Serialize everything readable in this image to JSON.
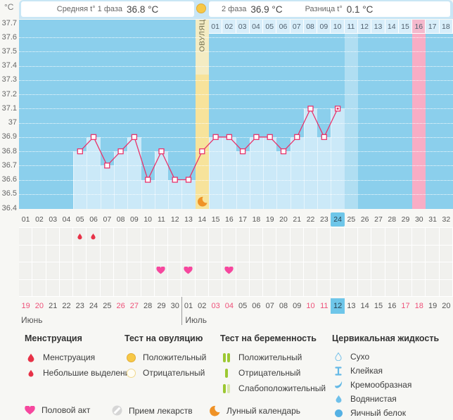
{
  "header": {
    "unit_label": "°C",
    "phase1_label": "Средняя t° 1 фаза",
    "phase1_value": "36.8 °C",
    "phase2_label": "2 фаза",
    "phase2_value": "36.9 °C",
    "diff_label": "Разница t°",
    "diff_value": "0.1 °C"
  },
  "colors": {
    "line": "#e8336b",
    "chart_bg": "#8bcfec",
    "bar_fill": "#cbe9f8",
    "ovulation_band": "#f7e39b",
    "period_band": "#f8adc5",
    "today_highlight": "#6ec6e9",
    "weekend_text": "#ee5078",
    "ovulation_yellow": "#f7c846",
    "pregnancy_green": "#9cc832",
    "fluid_blue": "#64b9e6",
    "heart_pink": "#f6479e",
    "moon_orange": "#ef9226",
    "drop_red": "#e73247"
  },
  "chart_data": {
    "type": "line",
    "ylabel": "°C",
    "ylim": [
      36.4,
      37.7
    ],
    "ytick_labels": [
      "37.7",
      "37.6",
      "37.5",
      "37.4",
      "37.3",
      "37.2",
      "37.1",
      "37",
      "36.9",
      "36.8",
      "36.7",
      "36.6",
      "36.5",
      "36.4"
    ],
    "grid": "dotted-horizontal",
    "x_days": 32,
    "points": [
      {
        "day": 5,
        "value": 36.8
      },
      {
        "day": 6,
        "value": 36.9
      },
      {
        "day": 7,
        "value": 36.7
      },
      {
        "day": 8,
        "value": 36.8
      },
      {
        "day": 9,
        "value": 36.9
      },
      {
        "day": 10,
        "value": 36.6
      },
      {
        "day": 11,
        "value": 36.8
      },
      {
        "day": 12,
        "value": 36.6
      },
      {
        "day": 13,
        "value": 36.6
      },
      {
        "day": 14,
        "value": 36.8
      },
      {
        "day": 15,
        "value": 36.9
      },
      {
        "day": 16,
        "value": 36.9
      },
      {
        "day": 17,
        "value": 36.8
      },
      {
        "day": 18,
        "value": 36.9
      },
      {
        "day": 19,
        "value": 36.9
      },
      {
        "day": 20,
        "value": 36.8
      },
      {
        "day": 21,
        "value": 36.9
      },
      {
        "day": 22,
        "value": 37.1
      },
      {
        "day": 23,
        "value": 36.9
      },
      {
        "day": 24,
        "value": 37.1
      }
    ],
    "ovulation": {
      "day": 14,
      "label": "ОВУЛЯЦИЯ"
    },
    "expected_period_day": 30,
    "current_day": 24,
    "highlight_column_day": 25,
    "phase2_day_labels": [
      "01",
      "02",
      "03",
      "04",
      "05",
      "06",
      "07",
      "08",
      "09",
      "10",
      "11",
      "12",
      "13",
      "14",
      "15",
      "16",
      "17",
      "18"
    ],
    "phase2_highlight_label": "16"
  },
  "day_row": {
    "labels": [
      "01",
      "02",
      "03",
      "04",
      "05",
      "06",
      "07",
      "08",
      "09",
      "10",
      "11",
      "12",
      "13",
      "14",
      "15",
      "16",
      "17",
      "18",
      "19",
      "20",
      "21",
      "22",
      "23",
      "24",
      "25",
      "26",
      "27",
      "28",
      "29",
      "30",
      "31",
      "32"
    ],
    "current": "24"
  },
  "events": {
    "spotting_days": [
      5,
      6
    ],
    "intercourse_days": [
      11,
      13,
      16
    ],
    "moon_day": 14
  },
  "calendar": {
    "months": [
      {
        "name": "Июнь",
        "days": [
          {
            "label": "19",
            "weekend": true
          },
          {
            "label": "20",
            "weekend": true
          },
          {
            "label": "21"
          },
          {
            "label": "22"
          },
          {
            "label": "23"
          },
          {
            "label": "24"
          },
          {
            "label": "25"
          },
          {
            "label": "26",
            "weekend": true
          },
          {
            "label": "27",
            "weekend": true
          },
          {
            "label": "28"
          },
          {
            "label": "29"
          },
          {
            "label": "30"
          }
        ]
      },
      {
        "name": "Июль",
        "days": [
          {
            "label": "01"
          },
          {
            "label": "02"
          },
          {
            "label": "03",
            "weekend": true
          },
          {
            "label": "04",
            "weekend": true
          },
          {
            "label": "05"
          },
          {
            "label": "06"
          },
          {
            "label": "07"
          },
          {
            "label": "08"
          },
          {
            "label": "09"
          },
          {
            "label": "10",
            "weekend": true
          },
          {
            "label": "11",
            "weekend": true
          },
          {
            "label": "12",
            "today": true
          },
          {
            "label": "13"
          },
          {
            "label": "14"
          },
          {
            "label": "15"
          },
          {
            "label": "16"
          },
          {
            "label": "17",
            "weekend": true
          },
          {
            "label": "18",
            "weekend": true
          },
          {
            "label": "19"
          },
          {
            "label": "20"
          }
        ]
      }
    ]
  },
  "legend": {
    "groups": [
      {
        "title": "Менструация",
        "items": [
          {
            "icon": "menstruation-drop",
            "label": "Менструация"
          },
          {
            "icon": "spotting-drop",
            "label": "Небольшие выделения"
          }
        ]
      },
      {
        "title": "Тест на овуляцию",
        "items": [
          {
            "icon": "ovulation-positive",
            "label": "Положительный"
          },
          {
            "icon": "ovulation-negative",
            "label": "Отрицательный"
          }
        ]
      },
      {
        "title": "Тест на беременность",
        "items": [
          {
            "icon": "pregnancy-positive",
            "label": "Положительный"
          },
          {
            "icon": "pregnancy-negative",
            "label": "Отрицательный"
          },
          {
            "icon": "pregnancy-weak-positive",
            "label": "Слабоположительный"
          }
        ]
      },
      {
        "title": "Цервикальная жидкость",
        "items": [
          {
            "icon": "fluid-dry",
            "label": "Сухо"
          },
          {
            "icon": "fluid-sticky",
            "label": "Клейкая"
          },
          {
            "icon": "fluid-creamy",
            "label": "Кремообразная"
          },
          {
            "icon": "fluid-watery",
            "label": "Водянистая"
          },
          {
            "icon": "fluid-eggwhite",
            "label": "Яичный белок"
          }
        ]
      }
    ],
    "footer_items": [
      {
        "icon": "intercourse-heart",
        "label": "Половой акт"
      },
      {
        "icon": "medication-pill",
        "label": "Прием лекарств"
      },
      {
        "icon": "moon-calendar",
        "label": "Лунный календарь"
      }
    ]
  }
}
